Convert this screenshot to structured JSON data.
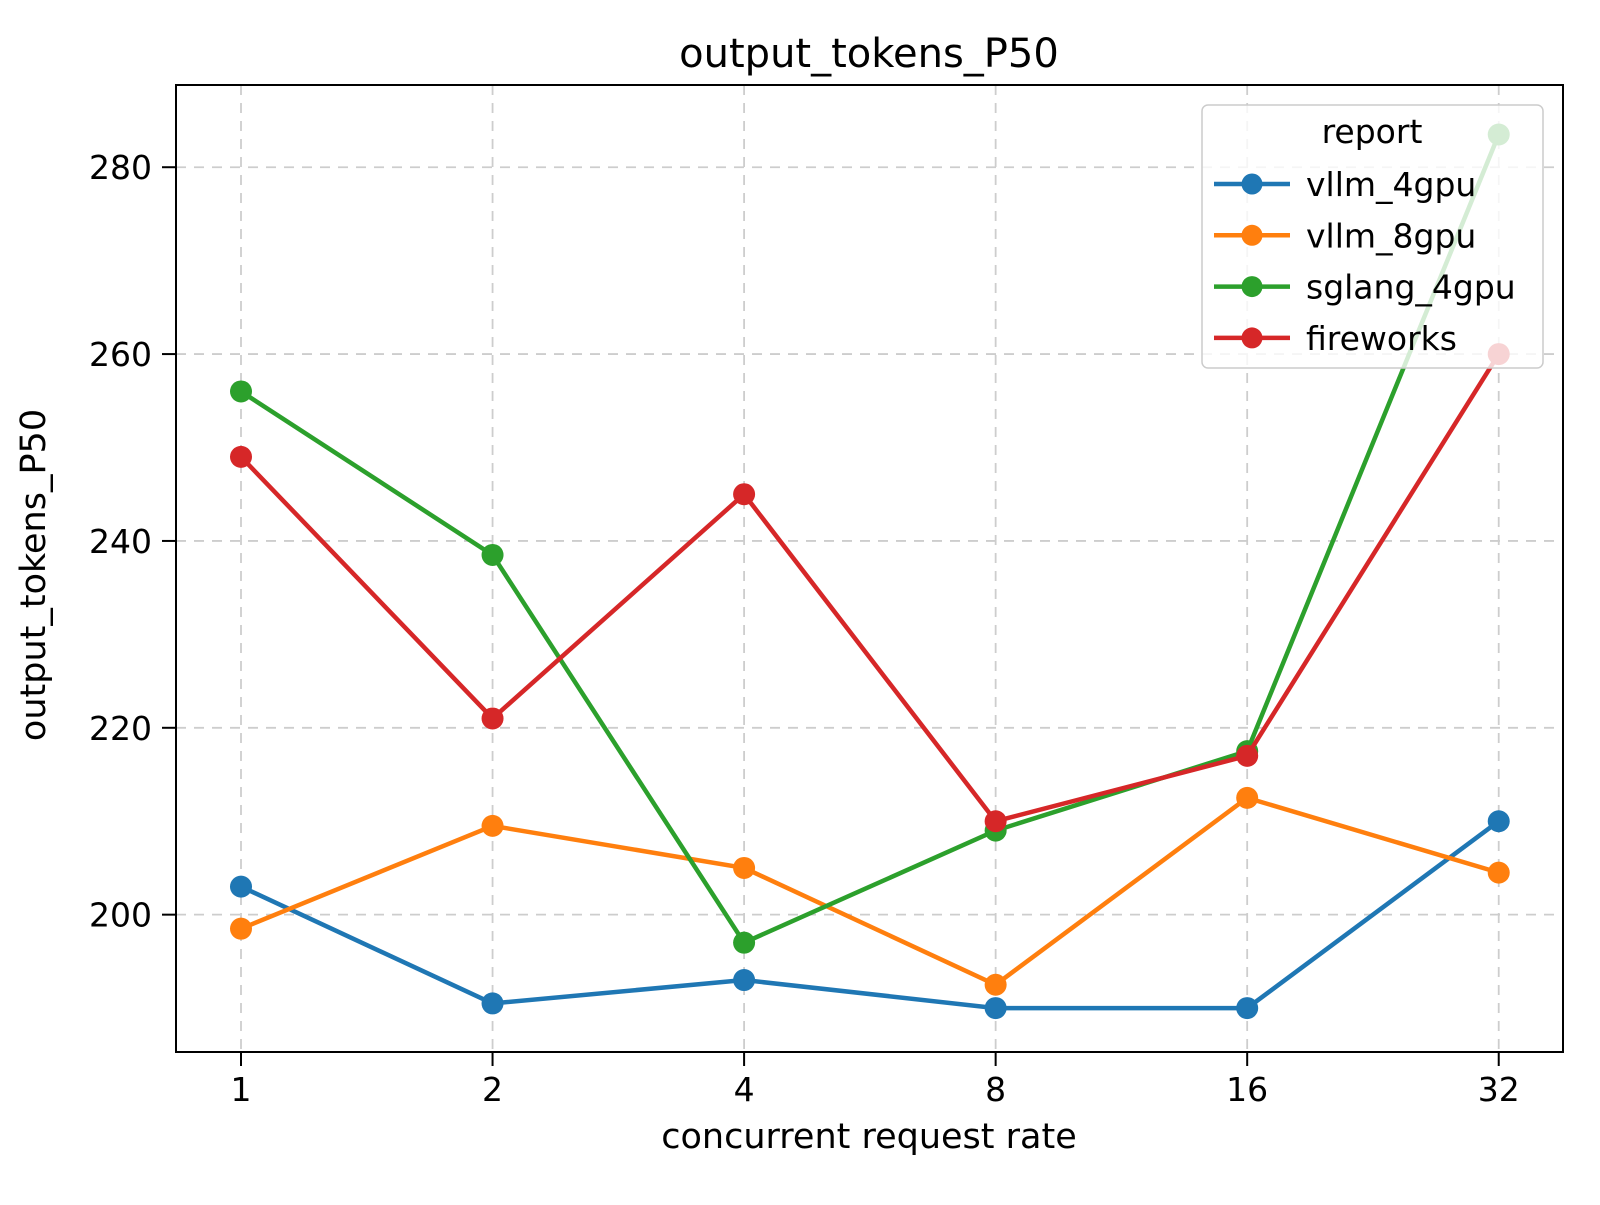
{
  "chart_data": {
    "type": "line",
    "title": "output_tokens_P50",
    "xlabel": "concurrent request rate",
    "ylabel": "output_tokens_P50",
    "x_scale": "log2",
    "grid": true,
    "x": [
      1,
      2,
      4,
      8,
      16,
      32
    ],
    "x_tick_labels": [
      "1",
      "2",
      "4",
      "8",
      "16",
      "32"
    ],
    "y_ticks": [
      200,
      220,
      240,
      260,
      280
    ],
    "xlim": [
      0.836,
      38.2
    ],
    "ylim": [
      185.3,
      288.8
    ],
    "legend": {
      "title": "report",
      "position": "upper right"
    },
    "series": [
      {
        "name": "vllm_4gpu",
        "color": "#1f77b4",
        "values": [
          203,
          190.5,
          193,
          190,
          190,
          210
        ]
      },
      {
        "name": "vllm_8gpu",
        "color": "#ff7f0e",
        "values": [
          198.5,
          209.5,
          205,
          192.5,
          212.5,
          204.5
        ]
      },
      {
        "name": "sglang_4gpu",
        "color": "#2ca02c",
        "values": [
          256,
          238.5,
          197,
          209,
          217.5,
          283.5
        ]
      },
      {
        "name": "fireworks",
        "color": "#d62728",
        "values": [
          249,
          221,
          245,
          210,
          217,
          260
        ]
      }
    ]
  }
}
